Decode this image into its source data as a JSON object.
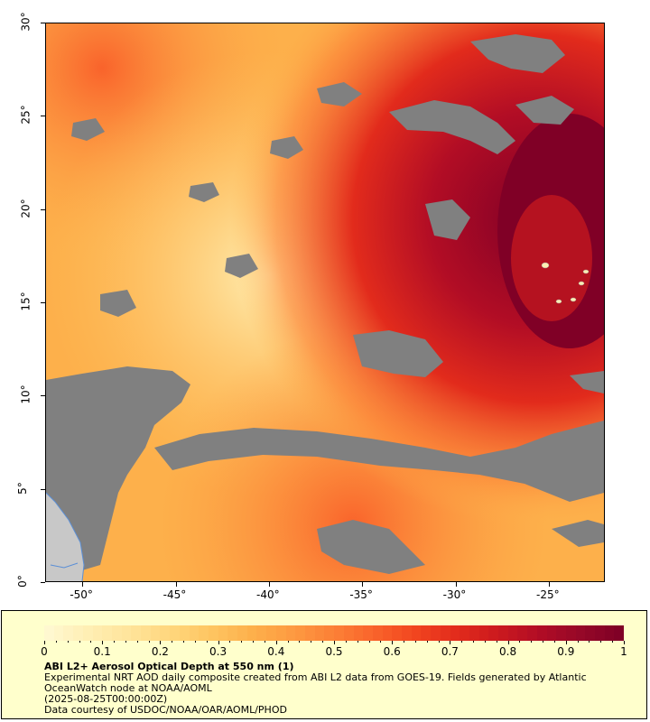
{
  "map": {
    "lat_ticks": [
      "0°",
      "5°",
      "10°",
      "15°",
      "20°",
      "25°",
      "30°"
    ],
    "lon_ticks": [
      "-50°",
      "-45°",
      "-40°",
      "-35°",
      "-30°",
      "-25°"
    ],
    "lat_range": [
      0,
      30
    ],
    "lon_range": [
      -52,
      -22
    ],
    "colors": {
      "nodata": "#808080",
      "land": "#c8c8c8",
      "coastline": "#5b8fd6"
    }
  },
  "legend": {
    "colorbar_colors": [
      "#fff8d0",
      "#ffeeb3",
      "#ffe49a",
      "#ffd67c",
      "#fec561",
      "#fdb04b",
      "#fd9a41",
      "#fc8036",
      "#f9632b",
      "#f1451f",
      "#e22b1c",
      "#cc1a1e",
      "#b20d25",
      "#970828",
      "#800026"
    ],
    "tick_labels": [
      "0",
      "0.1",
      "0.2",
      "0.3",
      "0.4",
      "0.5",
      "0.6",
      "0.7",
      "0.8",
      "0.9",
      "1"
    ],
    "title": "ABI L2+ Aerosol Optical Depth at 550 nm (1)",
    "line1": "Experimental NRT AOD daily composite created from ABI L2 data from GOES-19. Fields generated by Atlantic",
    "line2": "OceanWatch node at NOAA/AOML",
    "line3": "(2025-08-25T00:00:00Z)",
    "line4": "Data courtesy of USDOC/NOAA/OAR/AOML/PHOD"
  }
}
